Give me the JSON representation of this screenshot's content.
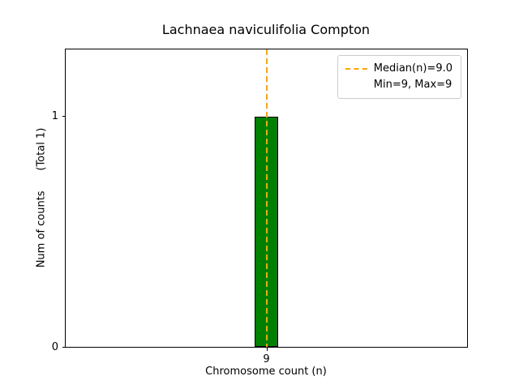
{
  "chart_data": {
    "type": "bar",
    "title": "Lachnaea naviculifolia Compton",
    "xlabel": "Chromosome count (n)",
    "ylabel": "Num of counts      (Total 1)",
    "categories": [
      "9"
    ],
    "x": [
      9
    ],
    "values": [
      1
    ],
    "total_counts": 1,
    "bar_width": 0.8,
    "bar_color": "#008000",
    "bar_edge_color": "#000000",
    "xlim": [
      2,
      16
    ],
    "ylim": [
      0,
      1.29
    ],
    "xticks": [
      9
    ],
    "xtick_labels": [
      "9"
    ],
    "yticks": [
      0,
      1
    ],
    "ytick_labels": [
      "0",
      "1"
    ],
    "grid": false,
    "legend_position": "upper right",
    "median_line": {
      "x": 9,
      "color": "#FFA500",
      "style": "dashed",
      "width": 2,
      "label": "Median(n)=9.0"
    },
    "annotations": [
      "Min=9, Max=9"
    ]
  },
  "legend": {
    "entries": [
      {
        "label": "Median(n)=9.0",
        "sample": "dashed-line",
        "color": "#FFA500"
      },
      {
        "label": "Min=9, Max=9",
        "sample": "none"
      }
    ]
  }
}
